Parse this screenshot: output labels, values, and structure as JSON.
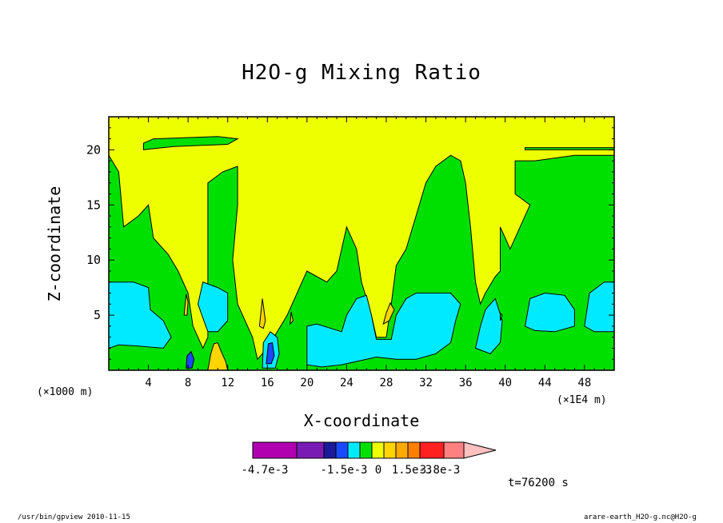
{
  "chart_data": {
    "type": "heatmap",
    "title": "H2O-g Mixing Ratio",
    "xlabel": "X-coordinate",
    "ylabel": "Z-coordinate",
    "x_unit_left": "(×1000 m)",
    "x_unit_right": "(×1E4 m)",
    "xlim": [
      0,
      51
    ],
    "ylim": [
      0,
      23
    ],
    "x_ticks": [
      4,
      8,
      12,
      16,
      20,
      24,
      28,
      32,
      36,
      40,
      44,
      48
    ],
    "y_ticks": [
      5,
      10,
      15,
      20
    ],
    "colorbar": {
      "colors": [
        "#b000b0",
        "#7a1ab5",
        "#1a1a9a",
        "#1a4aff",
        "#00eaff",
        "#00e000",
        "#eeff00",
        "#ffd500",
        "#ffaa00",
        "#ff7f00",
        "#ff2020",
        "#ff8080",
        "#ffc0c0"
      ],
      "labels": [
        "-4.7e-3",
        "-1.5e-3",
        "0",
        "1.5e-3",
        "3.8e-3"
      ]
    },
    "regions": [
      {
        "level": "yellow",
        "color": "#eeff00",
        "outline": [
          [
            0,
            0
          ],
          [
            51,
            0
          ],
          [
            51,
            23
          ],
          [
            0,
            23
          ]
        ]
      },
      {
        "level": "green",
        "color": "#00e000",
        "outline": [
          [
            0,
            0
          ],
          [
            0,
            19.5
          ],
          [
            1,
            18
          ],
          [
            1.5,
            13
          ],
          [
            3,
            14
          ],
          [
            4,
            15
          ],
          [
            4.5,
            12
          ],
          [
            6,
            10.5
          ],
          [
            7,
            9
          ],
          [
            8,
            7
          ],
          [
            8.5,
            4
          ],
          [
            9.5,
            2
          ],
          [
            10,
            3
          ],
          [
            10,
            17
          ],
          [
            11.5,
            18
          ],
          [
            13,
            18.5
          ],
          [
            13,
            15
          ],
          [
            12.5,
            10
          ],
          [
            13,
            6
          ],
          [
            14.5,
            3
          ],
          [
            15,
            1
          ],
          [
            16,
            2
          ],
          [
            18,
            5
          ],
          [
            20,
            9
          ],
          [
            22,
            8
          ],
          [
            23,
            9
          ],
          [
            24,
            13
          ],
          [
            25,
            11
          ],
          [
            25.5,
            8
          ],
          [
            26.5,
            5
          ],
          [
            27,
            3
          ],
          [
            28,
            3
          ],
          [
            28.5,
            6
          ],
          [
            29,
            9.5
          ],
          [
            30,
            11
          ],
          [
            31,
            14
          ],
          [
            32,
            17
          ],
          [
            33,
            18.5
          ],
          [
            34.5,
            19.5
          ],
          [
            35.5,
            19
          ],
          [
            36,
            17
          ],
          [
            36.5,
            13
          ],
          [
            37,
            8
          ],
          [
            37.5,
            6
          ],
          [
            38,
            7
          ],
          [
            39,
            8.5
          ],
          [
            39.5,
            9
          ],
          [
            39.5,
            13
          ],
          [
            40,
            12
          ],
          [
            40.5,
            11
          ],
          [
            41,
            12
          ],
          [
            42.5,
            15
          ],
          [
            41,
            16
          ],
          [
            41,
            19
          ],
          [
            43,
            19
          ],
          [
            47,
            19.5
          ],
          [
            51,
            19.5
          ],
          [
            51,
            0
          ]
        ]
      },
      {
        "level": "green",
        "color": "#00e000",
        "outline": [
          [
            3.5,
            20
          ],
          [
            6.5,
            20.3
          ],
          [
            12,
            20.5
          ],
          [
            13,
            21
          ],
          [
            11,
            21.2
          ],
          [
            4.5,
            21
          ],
          [
            3.5,
            20.6
          ]
        ]
      },
      {
        "level": "green",
        "color": "#00e000",
        "outline": [
          [
            42,
            20
          ],
          [
            51,
            20
          ],
          [
            51,
            20.2
          ],
          [
            42,
            20.2
          ]
        ]
      },
      {
        "level": "cyan",
        "color": "#00eaff",
        "outline": [
          [
            0,
            2
          ],
          [
            0,
            8
          ],
          [
            2.5,
            8
          ],
          [
            4,
            7.5
          ],
          [
            4.2,
            5.5
          ],
          [
            5.5,
            4.5
          ],
          [
            6.3,
            3
          ],
          [
            5.5,
            2
          ],
          [
            3,
            2.2
          ],
          [
            1,
            2.3
          ]
        ]
      },
      {
        "level": "cyan",
        "color": "#00eaff",
        "outline": [
          [
            9,
            6
          ],
          [
            9.5,
            8
          ],
          [
            11,
            7.5
          ],
          [
            12,
            7
          ],
          [
            12,
            4.5
          ],
          [
            11,
            3.5
          ],
          [
            10,
            3.5
          ]
        ]
      },
      {
        "level": "cyan",
        "color": "#00eaff",
        "outline": [
          [
            20,
            0.5
          ],
          [
            20,
            4
          ],
          [
            21,
            4.2
          ],
          [
            23.5,
            3.5
          ],
          [
            24,
            5
          ],
          [
            25,
            6.5
          ],
          [
            26,
            6.8
          ],
          [
            26.5,
            5
          ],
          [
            27,
            2.8
          ],
          [
            28.5,
            2.8
          ],
          [
            29,
            5
          ],
          [
            30,
            6.5
          ],
          [
            31,
            7
          ],
          [
            34.5,
            7
          ],
          [
            35.5,
            6
          ],
          [
            35,
            4.5
          ],
          [
            34.5,
            2.5
          ],
          [
            33,
            1.5
          ],
          [
            31,
            1
          ],
          [
            29,
            1
          ],
          [
            27,
            1.2
          ],
          [
            23.5,
            0.5
          ],
          [
            21.5,
            0.3
          ]
        ]
      },
      {
        "level": "cyan",
        "color": "#00eaff",
        "outline": [
          [
            37,
            2
          ],
          [
            37.5,
            4
          ],
          [
            38,
            5.5
          ],
          [
            39,
            6.5
          ],
          [
            39.7,
            4.5
          ],
          [
            39.5,
            2.5
          ],
          [
            38.5,
            1.5
          ]
        ]
      },
      {
        "level": "cyan",
        "color": "#00eaff",
        "outline": [
          [
            42,
            4
          ],
          [
            42.5,
            6.5
          ],
          [
            44,
            7
          ],
          [
            46,
            6.8
          ],
          [
            47,
            5.5
          ],
          [
            47,
            4
          ],
          [
            45,
            3.5
          ],
          [
            43,
            3.6
          ]
        ]
      },
      {
        "level": "cyan",
        "color": "#00eaff",
        "outline": [
          [
            48,
            4
          ],
          [
            48.5,
            7
          ],
          [
            50,
            8
          ],
          [
            51,
            8
          ],
          [
            51,
            3.5
          ],
          [
            49,
            3.5
          ]
        ]
      },
      {
        "level": "cyan",
        "color": "#00eaff",
        "outline": [
          [
            15.5,
            0.2
          ],
          [
            15.6,
            2.5
          ],
          [
            16.3,
            3.5
          ],
          [
            17,
            3
          ],
          [
            17.2,
            1.5
          ],
          [
            16.8,
            0.2
          ]
        ]
      },
      {
        "level": "blue",
        "color": "#1a4aff",
        "outline": [
          [
            7.8,
            0.2
          ],
          [
            7.9,
            1.3
          ],
          [
            8.3,
            1.7
          ],
          [
            8.6,
            1
          ],
          [
            8.4,
            0.2
          ]
        ]
      },
      {
        "level": "blue",
        "color": "#1a4aff",
        "outline": [
          [
            15.9,
            0.6
          ],
          [
            16.1,
            2.4
          ],
          [
            16.5,
            2.5
          ],
          [
            16.7,
            1.3
          ],
          [
            16.4,
            0.6
          ]
        ]
      },
      {
        "level": "orange",
        "color": "#ffd500",
        "outline": [
          [
            10,
            0
          ],
          [
            10.3,
            1.5
          ],
          [
            10.6,
            2.4
          ],
          [
            11,
            2.5
          ],
          [
            11.3,
            1.8
          ],
          [
            11.8,
            0.8
          ],
          [
            12,
            0
          ]
        ]
      },
      {
        "level": "orange",
        "color": "#ffd500",
        "outline": [
          [
            15.2,
            4
          ],
          [
            15.5,
            6.5
          ],
          [
            15.8,
            4.5
          ],
          [
            15.6,
            3.8
          ]
        ]
      },
      {
        "level": "orange",
        "color": "#ffd500",
        "outline": [
          [
            27.7,
            4.2
          ],
          [
            28,
            5.2
          ],
          [
            28.4,
            6.1
          ],
          [
            28.8,
            5.5
          ],
          [
            28.3,
            4.5
          ]
        ]
      },
      {
        "level": "orange",
        "color": "#ffd500",
        "outline": [
          [
            7.6,
            5
          ],
          [
            7.8,
            6.9
          ],
          [
            8,
            6.2
          ],
          [
            7.9,
            5
          ]
        ]
      },
      {
        "level": "orange",
        "color": "#ffd500",
        "outline": [
          [
            18.3,
            4.2
          ],
          [
            18.4,
            5.3
          ],
          [
            18.6,
            4.5
          ]
        ]
      },
      {
        "level": "green",
        "color": "#00e000",
        "outline": [
          [
            39.5,
            4.5
          ],
          [
            39.5,
            5.2
          ],
          [
            39.7,
            5
          ]
        ]
      }
    ]
  },
  "annotations": {
    "time": "t=76200 s",
    "footer_left": "/usr/bin/gpview   2010-11-15",
    "footer_right": "arare-earth_H2O-g.nc@H2O-g"
  }
}
